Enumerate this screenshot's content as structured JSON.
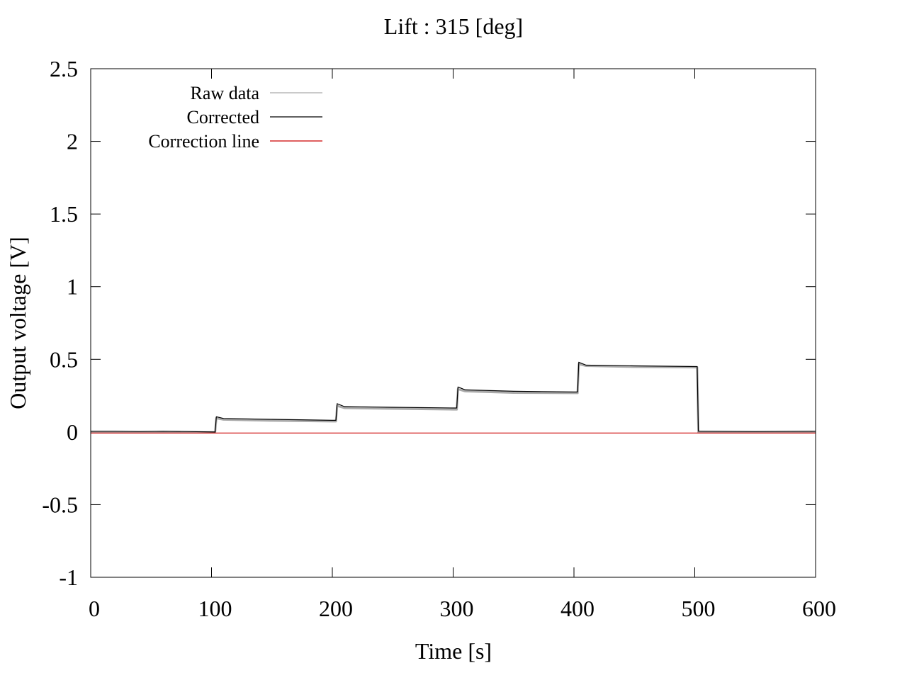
{
  "chart_data": {
    "type": "line",
    "title": "Lift : 315 [deg]",
    "xlabel": "Time [s]",
    "ylabel": "Output voltage [V]",
    "xlim": [
      0,
      600
    ],
    "ylim": [
      -1,
      2.5
    ],
    "xticks": [
      0,
      100,
      200,
      300,
      400,
      500,
      600
    ],
    "xtick_labels": [
      "0",
      "100",
      "200",
      "300",
      "400",
      "500",
      "600"
    ],
    "yticks": [
      -1,
      -0.5,
      0,
      0.5,
      1,
      1.5,
      2,
      2.5
    ],
    "ytick_labels": [
      "-1",
      "-0.5",
      "0",
      "0.5",
      "1",
      "1.5",
      "2",
      "2.5"
    ],
    "grid": false,
    "legend_position": "top-left",
    "series": [
      {
        "name": "Raw data",
        "color": "#aaaaaa",
        "x": [
          0,
          20,
          40,
          60,
          80,
          103,
          104,
          110,
          150,
          200,
          203,
          204,
          210,
          250,
          300,
          303,
          304,
          310,
          350,
          400,
          403,
          404,
          410,
          450,
          502,
          503,
          504,
          550,
          600
        ],
        "y": [
          -0.002,
          -0.002,
          -0.002,
          -0.002,
          -0.002,
          -0.002,
          0.095,
          0.085,
          0.078,
          0.073,
          0.073,
          0.18,
          0.165,
          0.16,
          0.155,
          0.155,
          0.295,
          0.28,
          0.27,
          0.268,
          0.268,
          0.468,
          0.455,
          0.448,
          0.445,
          -0.002,
          -0.002,
          -0.002,
          -0.002
        ]
      },
      {
        "name": "Corrected",
        "color": "#000000",
        "x": [
          0,
          20,
          40,
          60,
          80,
          103,
          104,
          110,
          150,
          200,
          203,
          204,
          210,
          250,
          300,
          303,
          304,
          310,
          350,
          400,
          403,
          404,
          410,
          450,
          502,
          503,
          504,
          550,
          600
        ],
        "y": [
          0.005,
          0.005,
          0.003,
          0.005,
          0.003,
          0.0,
          0.105,
          0.093,
          0.087,
          0.08,
          0.08,
          0.195,
          0.175,
          0.17,
          0.165,
          0.165,
          0.31,
          0.29,
          0.28,
          0.275,
          0.275,
          0.48,
          0.46,
          0.455,
          0.45,
          0.005,
          0.005,
          0.003,
          0.005
        ]
      },
      {
        "name": "Correction line",
        "color": "#cc0000",
        "x": [
          0,
          600
        ],
        "y": [
          -0.007,
          -0.007
        ]
      }
    ]
  }
}
